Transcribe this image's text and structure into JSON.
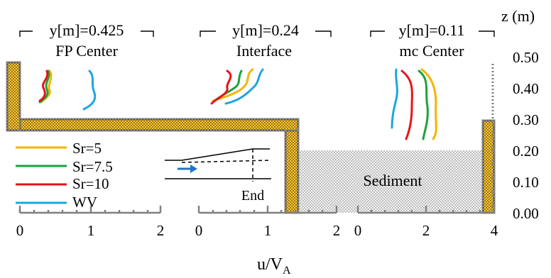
{
  "z_axis": {
    "label": "z (m)",
    "ticks": [
      "0.50",
      "0.40",
      "0.30",
      "0.20",
      "0.10",
      "0.00"
    ]
  },
  "xlabel": {
    "main": "u/V",
    "sub": "A"
  },
  "panels": [
    {
      "y_label": "y[m]=0.425",
      "location": "FP Center",
      "ticks": [
        "0",
        "1",
        "2"
      ]
    },
    {
      "y_label": "y[m]=0.24",
      "location": "Interface",
      "ticks": [
        "0",
        "1",
        "2"
      ]
    },
    {
      "y_label": "y[m]=0.11",
      "location": "mc Center",
      "ticks": [
        "0",
        "2",
        "4"
      ]
    }
  ],
  "legend": [
    {
      "label": "Sr=5",
      "color": "#F5B400"
    },
    {
      "label": "Sr=7.5",
      "color": "#1AA33C"
    },
    {
      "label": "Sr=10",
      "color": "#E8131A"
    },
    {
      "label": "WV",
      "color": "#1EA5E0"
    }
  ],
  "channel": {
    "sediment_label": "Sediment",
    "wall_color": "#FFC72C",
    "sediment_color": "#F2F2F2"
  },
  "inset": {
    "end_label": "End",
    "arrow_color": "#1F74C7"
  }
}
